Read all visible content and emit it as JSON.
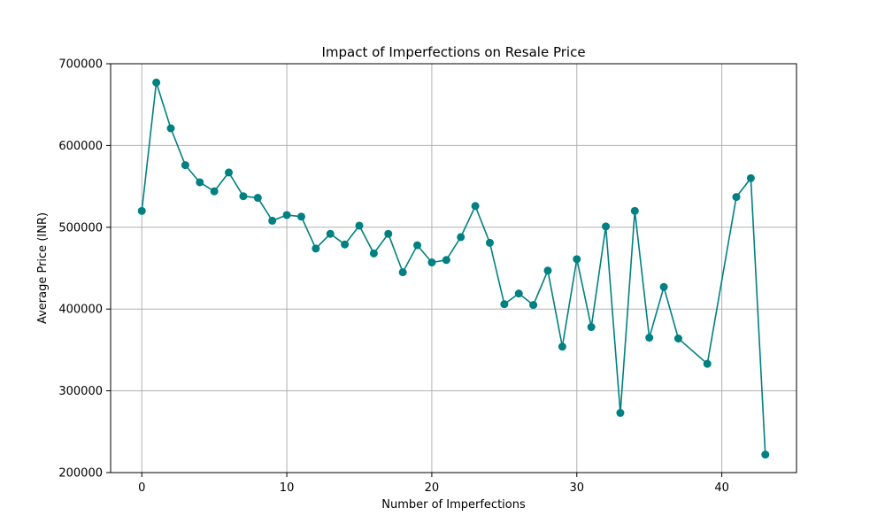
{
  "chart_data": {
    "type": "line",
    "title": "Impact of Imperfections on Resale Price",
    "xlabel": "Number of Imperfections",
    "ylabel": "Average Price (INR)",
    "xlim": [
      -2.15,
      45.15
    ],
    "ylim": [
      200000,
      700000
    ],
    "xticks": [
      0,
      10,
      20,
      30,
      40
    ],
    "yticks": [
      200000,
      300000,
      400000,
      500000,
      600000,
      700000
    ],
    "grid": true,
    "series": [
      {
        "color": "#008080",
        "marker": "circle",
        "x": [
          0,
          1,
          2,
          3,
          4,
          5,
          6,
          7,
          8,
          9,
          10,
          11,
          12,
          13,
          14,
          15,
          16,
          17,
          18,
          19,
          20,
          21,
          22,
          23,
          24,
          25,
          26,
          27,
          28,
          29,
          30,
          31,
          32,
          33,
          34,
          35,
          36,
          37,
          39,
          41,
          42,
          43
        ],
        "y": [
          520000,
          677000,
          621000,
          576000,
          555000,
          544000,
          567000,
          538000,
          536000,
          508000,
          515000,
          513000,
          474000,
          492000,
          479000,
          502000,
          468000,
          492000,
          445000,
          478000,
          457000,
          460000,
          488000,
          526000,
          481000,
          406000,
          419000,
          405000,
          447000,
          354000,
          461000,
          378000,
          501000,
          273000,
          520000,
          365000,
          427000,
          364000,
          333000,
          537000,
          560000,
          222000
        ]
      }
    ]
  }
}
